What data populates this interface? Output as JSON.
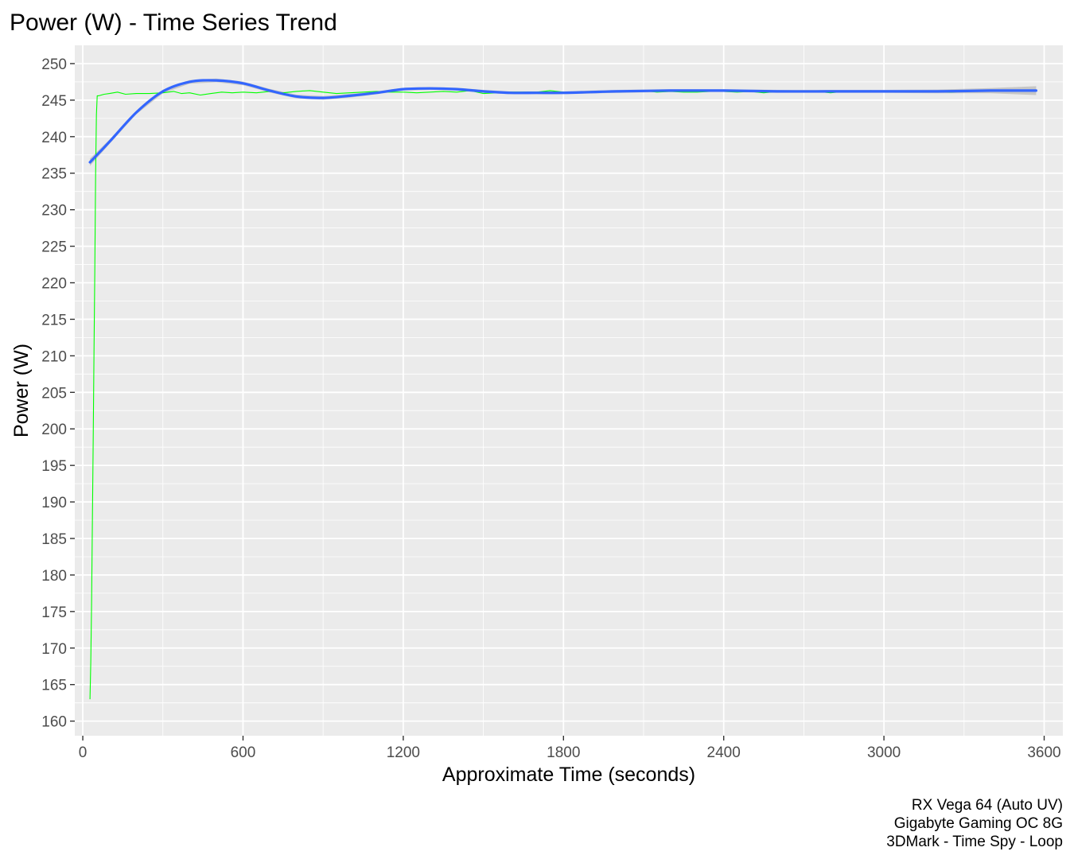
{
  "chart_data": {
    "type": "line",
    "title": "Power (W) - Time Series Trend",
    "xlabel": "Approximate Time (seconds)",
    "ylabel": "Power (W)",
    "xlim": [
      -30,
      3670
    ],
    "ylim": [
      158,
      252.5
    ],
    "x_ticks": [
      0,
      600,
      1200,
      1800,
      2400,
      3000,
      3600
    ],
    "y_ticks": [
      160,
      165,
      170,
      175,
      180,
      185,
      190,
      195,
      200,
      205,
      210,
      215,
      220,
      225,
      230,
      235,
      240,
      245,
      250
    ],
    "grid": true,
    "panel_background": "#EBEBEB",
    "caption": [
      "RX Vega 64 (Auto UV)",
      "Gigabyte Gaming OC 8G",
      "3DMark - Time Spy - Loop"
    ],
    "series": [
      {
        "kind": "raw",
        "color": "#00FF00",
        "x": [
          27,
          30,
          33,
          36,
          39,
          42,
          45,
          48,
          51,
          54,
          60,
          80,
          100,
          130,
          160,
          200,
          250,
          300,
          340,
          370,
          400,
          440,
          480,
          520,
          560,
          600,
          650,
          700,
          750,
          800,
          850,
          900,
          950,
          1000,
          1050,
          1100,
          1150,
          1200,
          1250,
          1300,
          1350,
          1400,
          1450,
          1500,
          1550,
          1600,
          1650,
          1700,
          1750,
          1800,
          1850,
          1900,
          1950,
          2000,
          2050,
          2100,
          2150,
          2200,
          2250,
          2300,
          2350,
          2400,
          2450,
          2500,
          2550,
          2600,
          2650,
          2700,
          2750,
          2800,
          2850,
          2900,
          2950,
          3000,
          3050,
          3100,
          3150,
          3200,
          3250,
          3300,
          3350,
          3400,
          3450,
          3500,
          3550,
          3570
        ],
        "values": [
          163,
          168,
          176,
          188,
          199,
          211,
          222,
          235,
          243,
          245.6,
          245.6,
          245.8,
          245.9,
          246.1,
          245.8,
          245.9,
          245.9,
          246.0,
          246.2,
          245.9,
          246.0,
          245.7,
          245.9,
          246.1,
          246.0,
          246.1,
          246.0,
          246.2,
          246.0,
          246.2,
          246.3,
          246.1,
          245.9,
          246.0,
          246.1,
          246.2,
          246.1,
          246.1,
          246.0,
          246.1,
          246.2,
          246.1,
          246.3,
          245.9,
          246.0,
          246.1,
          246.1,
          246.1,
          246.3,
          246.1,
          246.0,
          246.2,
          246.1,
          246.1,
          246.2,
          246.3,
          246.1,
          246.2,
          246.1,
          246.1,
          246.2,
          246.2,
          246.1,
          246.2,
          246.0,
          246.2,
          246.1,
          246.2,
          246.2,
          246.0,
          246.2,
          246.1,
          246.3,
          246.2,
          246.1,
          246.1,
          246.2,
          246.2,
          246.1,
          246.2,
          246.3,
          246.2,
          246.3,
          246.2,
          246.3,
          246.3
        ]
      },
      {
        "kind": "smooth",
        "color": "#3366FF",
        "band_color": "#999999",
        "x": [
          27,
          100,
          200,
          300,
          400,
          500,
          600,
          700,
          800,
          900,
          1000,
          1100,
          1200,
          1300,
          1400,
          1500,
          1600,
          1700,
          1800,
          1900,
          2000,
          2200,
          2400,
          2600,
          2800,
          3000,
          3200,
          3400,
          3570
        ],
        "values": [
          236.5,
          239.3,
          243.3,
          246.2,
          247.5,
          247.7,
          247.3,
          246.3,
          245.5,
          245.3,
          245.6,
          246.0,
          246.5,
          246.6,
          246.5,
          246.2,
          246.0,
          246.0,
          246.0,
          246.1,
          246.2,
          246.3,
          246.3,
          246.2,
          246.2,
          246.2,
          246.2,
          246.3,
          246.3
        ],
        "band": [
          0.5,
          0.3,
          0.25,
          0.25,
          0.25,
          0.25,
          0.25,
          0.25,
          0.25,
          0.25,
          0.25,
          0.2,
          0.2,
          0.2,
          0.2,
          0.2,
          0.2,
          0.2,
          0.2,
          0.2,
          0.2,
          0.2,
          0.2,
          0.2,
          0.2,
          0.2,
          0.25,
          0.35,
          0.6
        ]
      }
    ]
  }
}
